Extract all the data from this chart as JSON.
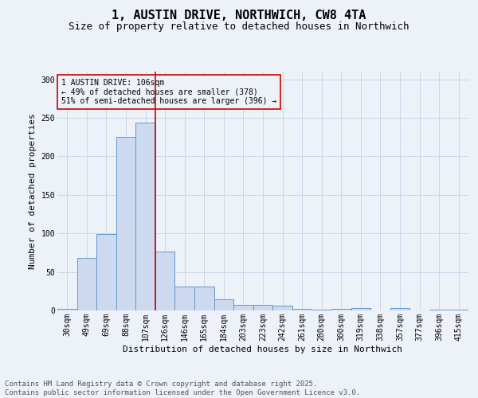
{
  "title": "1, AUSTIN DRIVE, NORTHWICH, CW8 4TA",
  "subtitle": "Size of property relative to detached houses in Northwich",
  "xlabel": "Distribution of detached houses by size in Northwich",
  "ylabel": "Number of detached properties",
  "categories": [
    "30sqm",
    "49sqm",
    "69sqm",
    "88sqm",
    "107sqm",
    "126sqm",
    "146sqm",
    "165sqm",
    "184sqm",
    "203sqm",
    "223sqm",
    "242sqm",
    "261sqm",
    "280sqm",
    "300sqm",
    "319sqm",
    "338sqm",
    "357sqm",
    "377sqm",
    "396sqm",
    "415sqm"
  ],
  "values": [
    2,
    68,
    99,
    225,
    244,
    76,
    31,
    31,
    14,
    7,
    7,
    6,
    2,
    1,
    2,
    3,
    0,
    3,
    0,
    1,
    1
  ],
  "bar_color": "#ccd9ee",
  "bar_edge_color": "#6699cc",
  "grid_color": "#ccd5e8",
  "background_color": "#edf2f9",
  "vline_x_index": 4.5,
  "vline_color": "#cc0000",
  "annotation_box_text": "1 AUSTIN DRIVE: 106sqm\n← 49% of detached houses are smaller (378)\n51% of semi-detached houses are larger (396) →",
  "annotation_box_color": "#cc0000",
  "footer": "Contains HM Land Registry data © Crown copyright and database right 2025.\nContains public sector information licensed under the Open Government Licence v3.0.",
  "ylim": [
    0,
    310
  ],
  "yticks": [
    0,
    50,
    100,
    150,
    200,
    250,
    300
  ],
  "title_fontsize": 11,
  "subtitle_fontsize": 9,
  "axis_label_fontsize": 8,
  "tick_fontsize": 7,
  "annotation_fontsize": 7,
  "footer_fontsize": 6.5
}
